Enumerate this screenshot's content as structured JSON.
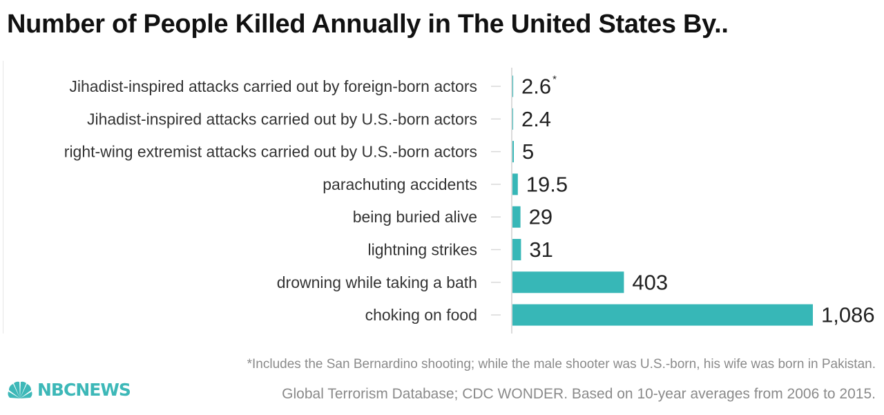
{
  "chart_data": {
    "type": "bar",
    "orientation": "horizontal",
    "title": "Number of People Killed Annually in The United States By..",
    "categories": [
      "Jihadist-inspired attacks carried out by foreign-born actors",
      "Jihadist-inspired attacks carried out by U.S.-born actors",
      "right-wing extremist attacks carried out by U.S.-born actors",
      "parachuting accidents",
      "being buried alive",
      "lightning strikes",
      "drowning while taking a bath",
      "choking on food"
    ],
    "values": [
      2.6,
      2.4,
      5,
      19.5,
      29,
      31,
      403,
      1086
    ],
    "value_labels": [
      "2.6",
      "2.4",
      "5",
      "19.5",
      "29",
      "31",
      "403",
      "1,086"
    ],
    "value_markers": [
      "*",
      "",
      "",
      "",
      "",
      "",
      "",
      ""
    ],
    "xlim": [
      0,
      1086
    ],
    "bar_color": "#37b7b7",
    "grid": false
  },
  "footnote": "*Includes the San Bernardino shooting;  while the male shooter was U.S.-born, his wife was born in Pakistan.",
  "source": "Global Terrorism Database; CDC WONDER. Based on 10-year averages from 2006 to 2015.",
  "logo": {
    "icon": "peacock-icon",
    "text": "NBCNEWS",
    "color": "#3db8b8"
  }
}
